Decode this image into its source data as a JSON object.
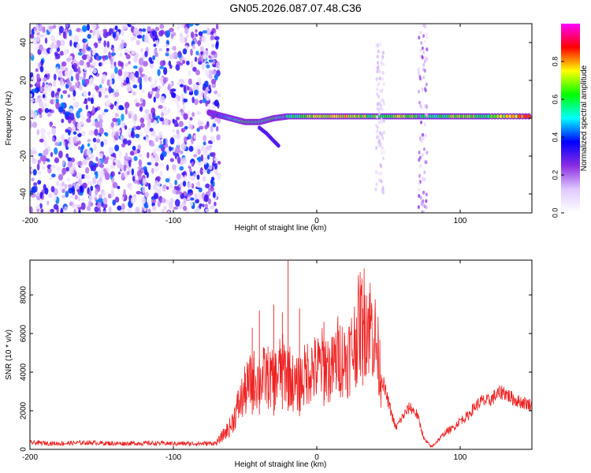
{
  "title": "GN05.2026.087.07.48.C36",
  "chart_data": [
    {
      "type": "heatmap",
      "title": "",
      "xlabel": "Height of straight line (km)",
      "ylabel": "Frequency (Hz)",
      "xlim": [
        -200,
        150
      ],
      "ylim": [
        -50,
        50
      ],
      "xticks": [
        -200,
        -100,
        0,
        100
      ],
      "yticks": [
        -40,
        -20,
        0,
        20,
        40
      ],
      "colorbar": {
        "label": "Normalized spectral amplitude",
        "ticks": [
          0.0,
          0.2,
          0.4,
          0.6,
          0.8
        ],
        "range": [
          0,
          1
        ],
        "colormap": [
          "#ffffff",
          "#e0c8ff",
          "#8a2be2",
          "#0000ff",
          "#00ffff",
          "#00ff00",
          "#ffff00",
          "#ff0000",
          "#ff00ff"
        ]
      },
      "features": [
        {
          "name": "noise",
          "x_range": [
            -200,
            -68
          ],
          "y_range": [
            -50,
            50
          ],
          "level": 0.25
        },
        {
          "name": "signal-band",
          "x": [
            -75,
            -70,
            -60,
            -50,
            -40,
            -30,
            -20,
            0,
            20,
            40,
            60,
            80,
            100,
            120,
            150
          ],
          "y": [
            3,
            2,
            0,
            -2,
            -2,
            0,
            1,
            1,
            1,
            1,
            1,
            1,
            1,
            1,
            1
          ],
          "level": [
            0.35,
            0.4,
            0.5,
            0.6,
            0.55,
            0.6,
            0.5,
            0.7,
            0.75,
            0.6,
            0.7,
            0.5,
            0.7,
            0.6,
            0.9
          ]
        },
        {
          "name": "branch",
          "x": [
            -40,
            -35,
            -30,
            -26
          ],
          "y": [
            -5,
            -8,
            -12,
            -15
          ],
          "level": 0.3
        },
        {
          "name": "vertical-stripe",
          "x": 74,
          "y_range": [
            -50,
            50
          ],
          "level": 0.2
        },
        {
          "name": "vertical-stripe",
          "x": 44,
          "y_range": [
            -40,
            40
          ],
          "level": 0.1
        }
      ]
    },
    {
      "type": "line",
      "title": "",
      "xlabel": "Height of straight line (km)",
      "ylabel": "SNR (10 * v/v)",
      "xlim": [
        -200,
        150
      ],
      "ylim": [
        0,
        9800
      ],
      "xticks": [
        -200,
        -100,
        0,
        100
      ],
      "yticks": [
        0,
        2000,
        4000,
        6000,
        8000
      ],
      "color": "#ee2222",
      "series": [
        {
          "x": [
            -200,
            -180,
            -160,
            -140,
            -120,
            -100,
            -80,
            -70,
            -60,
            -55,
            -50,
            -45,
            -40,
            -35,
            -30,
            -25,
            -20,
            -15,
            -10,
            -5,
            0,
            5,
            10,
            15,
            20,
            25,
            30,
            35,
            40,
            45,
            50,
            55,
            60,
            65,
            70,
            75,
            80,
            85,
            90,
            95,
            100,
            105,
            110,
            115,
            120,
            125,
            130,
            135,
            140,
            145,
            150
          ],
          "values": [
            350,
            300,
            350,
            300,
            320,
            300,
            300,
            320,
            1200,
            2200,
            3000,
            3600,
            3600,
            3800,
            3500,
            4200,
            4000,
            3200,
            3600,
            4200,
            4100,
            4500,
            4000,
            4900,
            4600,
            5200,
            6500,
            6800,
            6000,
            3800,
            2400,
            1100,
            1700,
            2200,
            1800,
            500,
            120,
            500,
            900,
            1100,
            1500,
            1700,
            2200,
            2500,
            2500,
            2800,
            3000,
            2700,
            2500,
            2400,
            2300
          ],
          "spikes": [
            {
              "x": -45,
              "y": 6300
            },
            {
              "x": -40,
              "y": 7200
            },
            {
              "x": -30,
              "y": 7500
            },
            {
              "x": -24,
              "y": 7100
            },
            {
              "x": -20,
              "y": 9800
            },
            {
              "x": -12,
              "y": 7300
            },
            {
              "x": 5,
              "y": 6600
            },
            {
              "x": 32,
              "y": 7300
            }
          ]
        }
      ]
    }
  ]
}
